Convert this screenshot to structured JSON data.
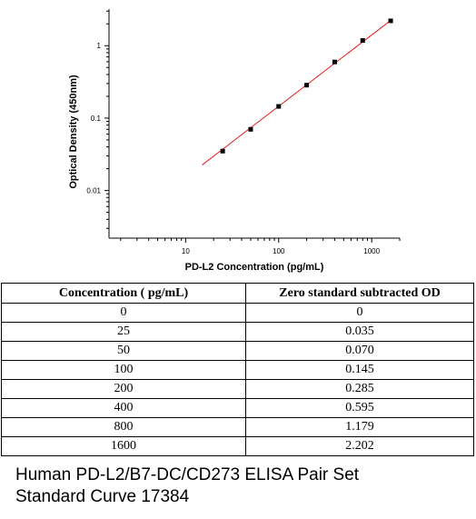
{
  "chart_data": {
    "type": "scatter",
    "xlabel": "PD-L2 Concentration (pg/mL)",
    "ylabel": "Optical Density (450nm)",
    "x_scale": "log",
    "y_scale": "log",
    "xlim": [
      1.5,
      2000
    ],
    "ylim": [
      0.0022,
      3.2
    ],
    "x_ticks": [
      "10",
      "100",
      "1000"
    ],
    "y_ticks": [
      "0.01",
      "0.1",
      "1"
    ],
    "x": [
      25,
      50,
      100,
      200,
      400,
      800,
      1600
    ],
    "y": [
      0.035,
      0.07,
      0.145,
      0.285,
      0.595,
      1.179,
      2.202
    ],
    "fit_line": {
      "x": [
        15,
        1650
      ],
      "y": [
        0.0225,
        2.3
      ],
      "color": "#e02020"
    },
    "marker_color": "#000000",
    "grid": false
  },
  "table": {
    "headers": [
      "Concentration ( pg/mL)",
      "Zero standard subtracted OD"
    ],
    "rows": [
      [
        "0",
        "0"
      ],
      [
        "25",
        "0.035"
      ],
      [
        "50",
        "0.070"
      ],
      [
        "100",
        "0.145"
      ],
      [
        "200",
        "0.285"
      ],
      [
        "400",
        "0.595"
      ],
      [
        "800",
        "1.179"
      ],
      [
        "1600",
        "2.202"
      ]
    ]
  },
  "caption": {
    "line1": "Human PD-L2/B7-DC/CD273 ELISA Pair Set",
    "line2": "Standard Curve 17384"
  }
}
